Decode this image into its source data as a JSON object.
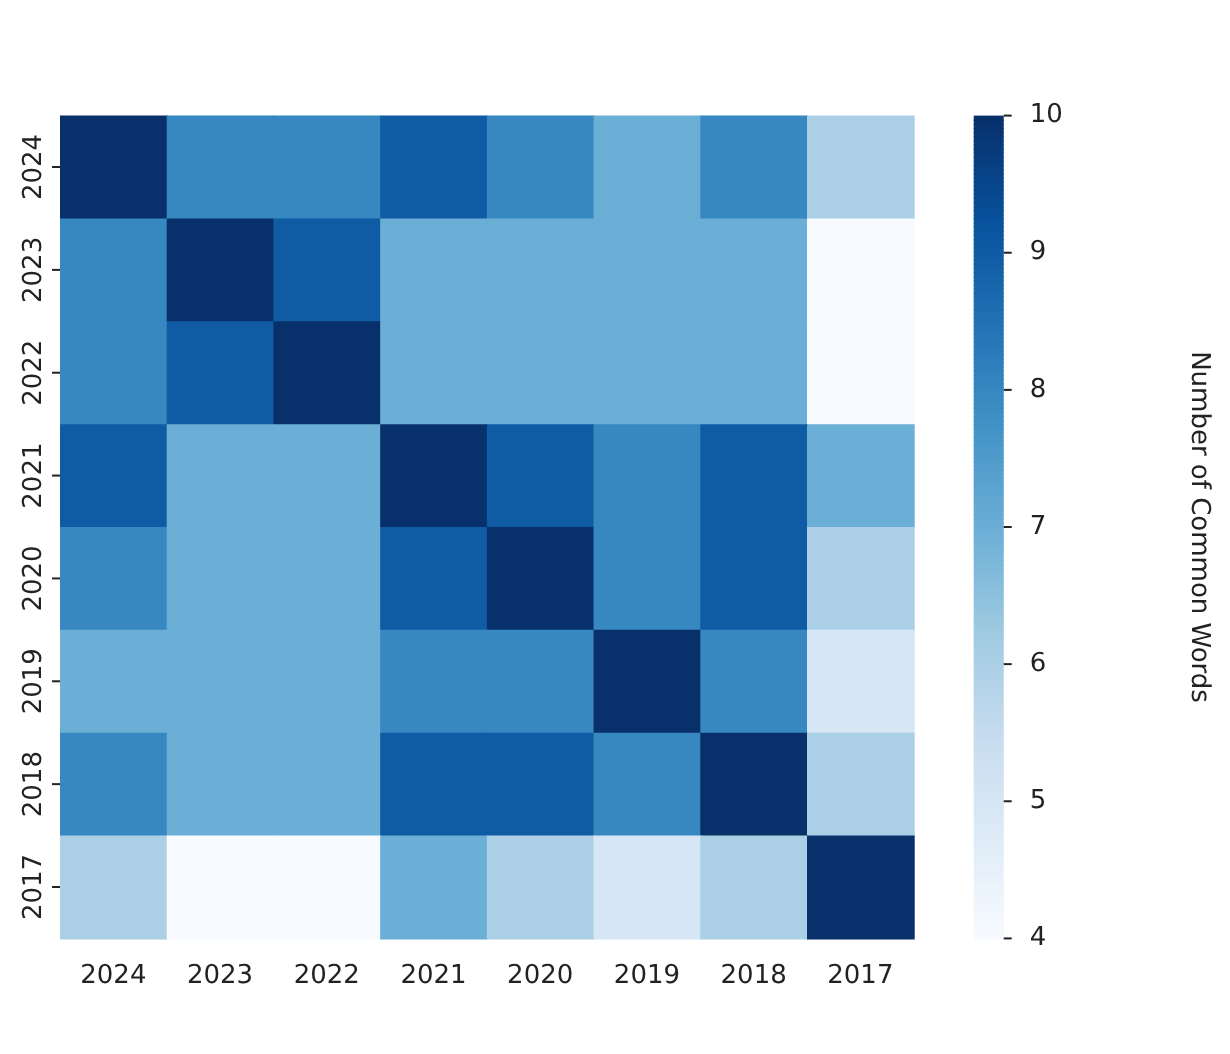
{
  "chart_data": {
    "type": "heatmap",
    "clabel": "Number of Common Words",
    "categories": [
      "2024",
      "2023",
      "2022",
      "2021",
      "2020",
      "2019",
      "2018",
      "2017"
    ],
    "y_categories": [
      "2024",
      "2023",
      "2022",
      "2021",
      "2020",
      "2019",
      "2018",
      "2017"
    ],
    "cells": [
      [
        10,
        8,
        8,
        9,
        8,
        7,
        8,
        6
      ],
      [
        8,
        10,
        9,
        7,
        7,
        7,
        7,
        4
      ],
      [
        8,
        9,
        10,
        7,
        7,
        7,
        7,
        4
      ],
      [
        9,
        7,
        7,
        10,
        9,
        8,
        9,
        7
      ],
      [
        8,
        7,
        7,
        9,
        10,
        8,
        9,
        6
      ],
      [
        7,
        7,
        7,
        8,
        8,
        10,
        8,
        5
      ],
      [
        8,
        7,
        7,
        9,
        9,
        8,
        10,
        6
      ],
      [
        6,
        4,
        4,
        7,
        6,
        5,
        6,
        10
      ]
    ],
    "clim": [
      4,
      10
    ],
    "cticks": [
      4,
      5,
      6,
      7,
      8,
      9,
      10
    ]
  }
}
